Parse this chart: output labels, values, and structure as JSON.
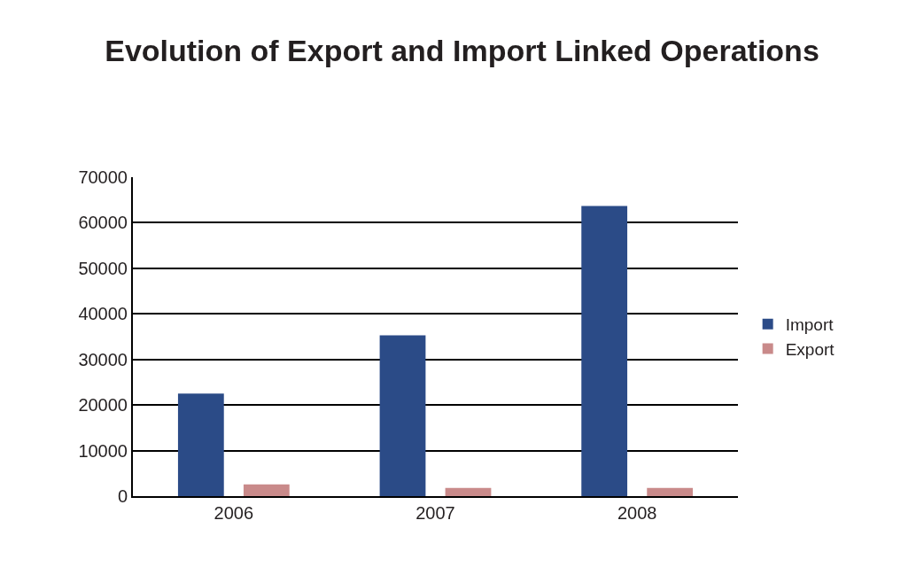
{
  "chart_data": {
    "type": "bar",
    "title": "Evolution of Export and Import Linked Operations",
    "categories": [
      "2006",
      "2007",
      "2008"
    ],
    "series": [
      {
        "name": "Import",
        "color": "#2b4b87",
        "values": [
          22500,
          35300,
          63700
        ]
      },
      {
        "name": "Export",
        "color": "#c98a8a",
        "values": [
          2600,
          1800,
          1800
        ]
      }
    ],
    "ylim": [
      0,
      70000
    ],
    "yticks": [
      0,
      10000,
      20000,
      30000,
      40000,
      50000,
      60000,
      70000
    ],
    "grid": "y",
    "legend": "right"
  }
}
